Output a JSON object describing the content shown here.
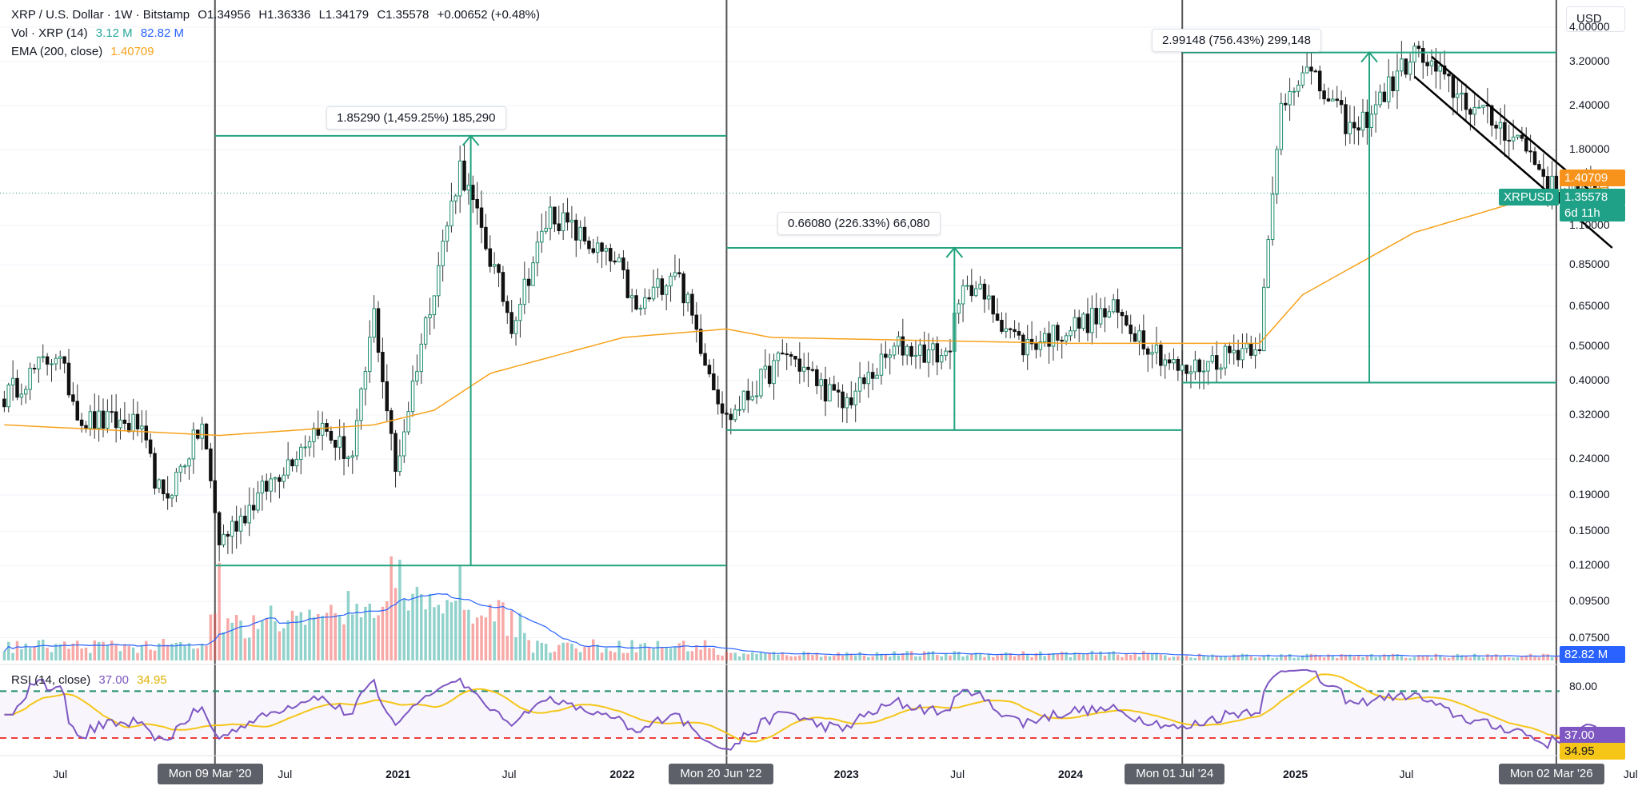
{
  "header": {
    "symbol": "XRP / U.S. Dollar · 1W · Bitstamp",
    "open": "O1.34956",
    "high": "H1.36336",
    "low": "L1.34179",
    "close": "C1.35578",
    "change": "+0.00652 (+0.48%)",
    "vol_label": "Vol · XRP (14)",
    "vol_value": "3.12 M",
    "vol_ma": "82.82 M",
    "ema_label": "EMA (200, close)",
    "ema_value": "1.40709"
  },
  "currency_button": "USD",
  "price_axis": [
    "4.00000",
    "3.20000",
    "2.40000",
    "1.80000",
    "1.10000",
    "0.85000",
    "0.65000",
    "0.50000",
    "0.40000",
    "0.32000",
    "0.24000",
    "0.19000",
    "0.15000",
    "0.12000",
    "0.09500",
    "0.07500"
  ],
  "time_axis": [
    {
      "text": "Jul",
      "bold": false
    },
    {
      "text": "Jul",
      "bold": false
    },
    {
      "text": "2021",
      "bold": true
    },
    {
      "text": "Jul",
      "bold": false
    },
    {
      "text": "2022",
      "bold": true
    },
    {
      "text": "2023",
      "bold": true
    },
    {
      "text": "Jul",
      "bold": false
    },
    {
      "text": "2024",
      "bold": true
    },
    {
      "text": "2025",
      "bold": true
    },
    {
      "text": "Jul",
      "bold": false
    },
    {
      "text": "Jul",
      "bold": false
    }
  ],
  "date_markers": [
    "Mon 09 Mar '20",
    "Mon 20 Jun '22",
    "Mon 01 Jul '24",
    "Mon 02 Mar '26"
  ],
  "measurements": [
    {
      "text": "1.85290 (1,459.25%) 185,290"
    },
    {
      "text": "0.66080 (226.33%) 66,080"
    },
    {
      "text": "2.99148 (756.43%) 299,148"
    }
  ],
  "price_tags": {
    "ema": "1.40709",
    "symbol": "XRPUSD",
    "last": "1.35578",
    "countdown": "6d 11h",
    "volume_ma": "82.82 M"
  },
  "rsi": {
    "label": "RSI (14, close)",
    "value": "37.00",
    "ma_value": "34.95",
    "axis_80": "80.00",
    "tag_value": "37.00",
    "tag_ma": "34.95"
  },
  "colors": {
    "up": "#26a69a",
    "down": "#ef5350",
    "ema": "#f7a21b",
    "measure": "#22a37f",
    "rsi": "#7e57c2",
    "rsi_ma": "#f5c518",
    "vol_ma": "#2962ff",
    "marker_line": "#555555"
  },
  "chart_data": {
    "type": "candlestick",
    "title": "XRP / U.S. Dollar · 1W · Bitstamp",
    "scale": "log",
    "ylim": [
      0.065,
      4.3
    ],
    "xlim": [
      "2019-03-25",
      "2026-07-13"
    ],
    "anchors": [
      {
        "date": "2019-04-01",
        "price": 0.36
      },
      {
        "date": "2019-06-24",
        "price": 0.48
      },
      {
        "date": "2019-08-05",
        "price": 0.31
      },
      {
        "date": "2019-11-04",
        "price": 0.3
      },
      {
        "date": "2019-12-16",
        "price": 0.18
      },
      {
        "date": "2020-02-17",
        "price": 0.3
      },
      {
        "date": "2020-03-16",
        "price": 0.14
      },
      {
        "date": "2020-06-01",
        "price": 0.2
      },
      {
        "date": "2020-08-24",
        "price": 0.3
      },
      {
        "date": "2020-10-19",
        "price": 0.24
      },
      {
        "date": "2020-11-23",
        "price": 0.62
      },
      {
        "date": "2020-12-28",
        "price": 0.22
      },
      {
        "date": "2021-02-01",
        "price": 0.45
      },
      {
        "date": "2021-04-12",
        "price": 1.62
      },
      {
        "date": "2021-07-05",
        "price": 0.58
      },
      {
        "date": "2021-09-06",
        "price": 1.2
      },
      {
        "date": "2021-12-27",
        "price": 0.83
      },
      {
        "date": "2022-01-24",
        "price": 0.62
      },
      {
        "date": "2022-03-28",
        "price": 0.84
      },
      {
        "date": "2022-06-20",
        "price": 0.31
      },
      {
        "date": "2022-09-26",
        "price": 0.48
      },
      {
        "date": "2022-12-26",
        "price": 0.34
      },
      {
        "date": "2023-03-27",
        "price": 0.5
      },
      {
        "date": "2023-06-12",
        "price": 0.47
      },
      {
        "date": "2023-07-17",
        "price": 0.78
      },
      {
        "date": "2023-10-16",
        "price": 0.5
      },
      {
        "date": "2024-03-11",
        "price": 0.63
      },
      {
        "date": "2024-07-01",
        "price": 0.42
      },
      {
        "date": "2024-11-04",
        "price": 0.52
      },
      {
        "date": "2024-12-09",
        "price": 2.4
      },
      {
        "date": "2025-01-13",
        "price": 3.1
      },
      {
        "date": "2025-04-07",
        "price": 2.0
      },
      {
        "date": "2025-07-14",
        "price": 3.4
      },
      {
        "date": "2025-10-13",
        "price": 2.4
      },
      {
        "date": "2026-01-05",
        "price": 1.9
      },
      {
        "date": "2026-03-02",
        "price": 1.35
      },
      {
        "date": "2026-05-25",
        "price": 1.356
      }
    ],
    "ema_200": [
      {
        "date": "2019-04-01",
        "price": 0.3
      },
      {
        "date": "2020-03-16",
        "price": 0.28
      },
      {
        "date": "2020-11-23",
        "price": 0.3
      },
      {
        "date": "2021-03-01",
        "price": 0.33
      },
      {
        "date": "2021-06-01",
        "price": 0.42
      },
      {
        "date": "2022-01-03",
        "price": 0.53
      },
      {
        "date": "2022-06-20",
        "price": 0.56
      },
      {
        "date": "2022-09-01",
        "price": 0.53
      },
      {
        "date": "2024-01-01",
        "price": 0.51
      },
      {
        "date": "2024-11-04",
        "price": 0.51
      },
      {
        "date": "2025-01-13",
        "price": 0.7
      },
      {
        "date": "2025-07-14",
        "price": 1.05
      },
      {
        "date": "2026-03-02",
        "price": 1.38
      },
      {
        "date": "2026-05-25",
        "price": 1.407
      }
    ],
    "volume_spikes": [
      {
        "date": "2020-03-16",
        "value": 1.0
      },
      {
        "date": "2020-12-21",
        "value": 1.0
      },
      {
        "date": "2021-01-04",
        "value": 0.9
      },
      {
        "date": "2021-04-12",
        "value": 0.85
      },
      {
        "date": "2024-12-09",
        "value": 0.2
      }
    ],
    "measurements": [
      {
        "from_date": "2020-03-09",
        "to_date": "2022-06-20",
        "low": 0.12,
        "high": 1.97,
        "change": "1.85290 (1,459.25%) 185,290"
      },
      {
        "from_date": "2022-06-20",
        "to_date": "2024-07-01",
        "low": 0.29,
        "high": 0.95,
        "change": "0.66080 (226.33%) 66,080"
      },
      {
        "from_date": "2024-07-01",
        "to_date": "2026-03-02",
        "low": 0.395,
        "high": 3.39,
        "change": "2.99148 (756.43%) 299,148"
      }
    ],
    "channel": [
      {
        "from_date": "2025-07-14",
        "from_price": 2.9,
        "to_date": "2026-06-01",
        "to_price": 0.95
      },
      {
        "from_date": "2025-08-11",
        "from_price": 3.3,
        "to_date": "2026-06-01",
        "to_price": 1.22
      }
    ],
    "rsi_last": 37.0,
    "rsi_ma_last": 34.95,
    "rsi_levels": [
      70,
      30
    ]
  }
}
